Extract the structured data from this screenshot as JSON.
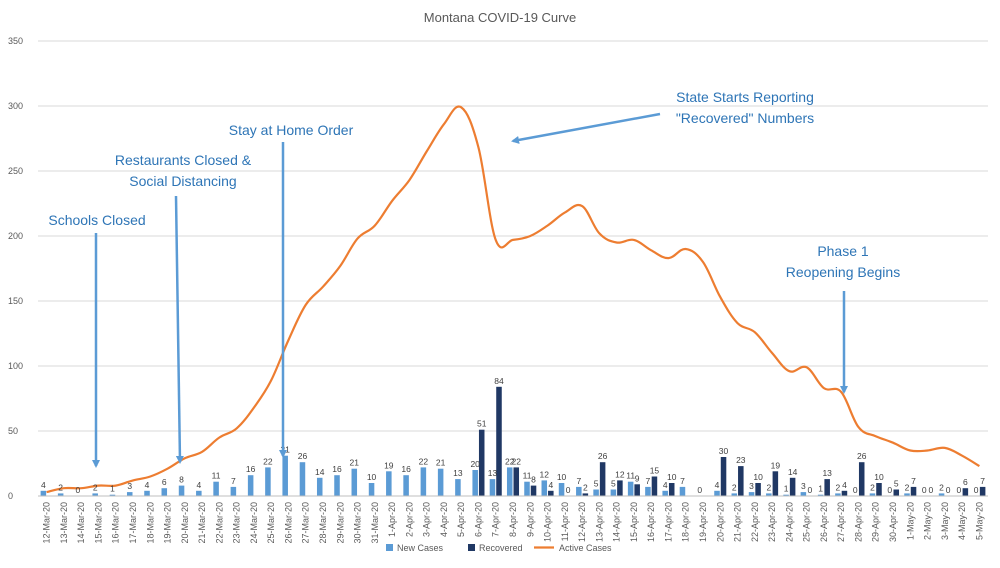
{
  "chart_data": {
    "type": "bar",
    "title": "Montana COVID-19 Curve",
    "ylim": [
      0,
      350
    ],
    "yticks": [
      0,
      50,
      100,
      150,
      200,
      250,
      300,
      350
    ],
    "grid": true,
    "legend_position": "bottom",
    "categories": [
      "12-Mar-20",
      "13-Mar-20",
      "14-Mar-20",
      "15-Mar-20",
      "16-Mar-20",
      "17-Mar-20",
      "18-Mar-20",
      "19-Mar-20",
      "20-Mar-20",
      "21-Mar-20",
      "22-Mar-20",
      "23-Mar-20",
      "24-Mar-20",
      "25-Mar-20",
      "26-Mar-20",
      "27-Mar-20",
      "28-Mar-20",
      "29-Mar-20",
      "30-Mar-20",
      "31-Mar-20",
      "1-Apr-20",
      "2-Apr-20",
      "3-Apr-20",
      "4-Apr-20",
      "5-Apr-20",
      "6-Apr-20",
      "7-Apr-20",
      "8-Apr-20",
      "9-Apr-20",
      "10-Apr-20",
      "11-Apr-20",
      "12-Apr-20",
      "13-Apr-20",
      "14-Apr-20",
      "15-Apr-20",
      "16-Apr-20",
      "17-Apr-20",
      "18-Apr-20",
      "19-Apr-20",
      "20-Apr-20",
      "21-Apr-20",
      "22-Apr-20",
      "23-Apr-20",
      "24-Apr-20",
      "25-Apr-20",
      "26-Apr-20",
      "27-Apr-20",
      "28-Apr-20",
      "29-Apr-20",
      "30-Apr-20",
      "1-May-20",
      "2-May-20",
      "3-May-20",
      "4-May-20",
      "5-May-20"
    ],
    "series": [
      {
        "name": "New Cases",
        "kind": "bar",
        "color": "#5b9bd5",
        "values": [
          4,
          2,
          0,
          2,
          1,
          3,
          4,
          6,
          8,
          4,
          11,
          7,
          16,
          22,
          31,
          26,
          14,
          16,
          21,
          10,
          19,
          16,
          22,
          21,
          13,
          20,
          13,
          22,
          11,
          12,
          10,
          7,
          5,
          5,
          11,
          7,
          4,
          7,
          0,
          4,
          2,
          3,
          2,
          1,
          3,
          1,
          2,
          0,
          2,
          0,
          2,
          0,
          2,
          0,
          0
        ],
        "labels": [
          "4",
          "2",
          "0",
          "2",
          "1",
          "3",
          "4",
          "6",
          "8",
          "4",
          "11",
          "7",
          "16",
          "22",
          "31",
          "26",
          "14",
          "16",
          "21",
          "10",
          "19",
          "16",
          "22",
          "21",
          "13",
          "20",
          "13",
          "22",
          "11",
          "12",
          "10",
          "7",
          "5",
          "5",
          "11",
          "7",
          "4",
          "7",
          "0",
          "4",
          "2",
          "3",
          "2",
          "1",
          "3",
          "1",
          "2",
          "0",
          "2",
          "0",
          "2",
          "0",
          "2",
          "0",
          "0"
        ]
      },
      {
        "name": "Recovered",
        "kind": "bar",
        "color": "#203864",
        "values": [
          0,
          0,
          0,
          0,
          0,
          0,
          0,
          0,
          0,
          0,
          0,
          0,
          0,
          0,
          0,
          0,
          0,
          0,
          0,
          0,
          0,
          0,
          0,
          0,
          0,
          51,
          84,
          22,
          8,
          4,
          0,
          2,
          26,
          12,
          9,
          15,
          10,
          0,
          0,
          30,
          23,
          10,
          19,
          14,
          0,
          13,
          4,
          26,
          10,
          5,
          7,
          0,
          0,
          6,
          7
        ],
        "labels": [
          "",
          "",
          "",
          "",
          "",
          "",
          "",
          "",
          "",
          "",
          "",
          "",
          "",
          "",
          "",
          "",
          "",
          "",
          "",
          "",
          "",
          "",
          "",
          "",
          "",
          "51",
          "84",
          "22",
          "8",
          "4",
          "0",
          "2",
          "26",
          "12",
          "9",
          "15",
          "10",
          "",
          "",
          "30",
          "23",
          "10",
          "19",
          "14",
          "0",
          "13",
          "4",
          "26",
          "10",
          "5",
          "7",
          "0",
          "0",
          "6",
          "7"
        ]
      },
      {
        "name": "Active Cases",
        "kind": "line",
        "color": "#ed7d31",
        "values": [
          3,
          6,
          6,
          8,
          8,
          12,
          15,
          21,
          29,
          34,
          45,
          52,
          68,
          89,
          120,
          147,
          161,
          177,
          198,
          208,
          227,
          243,
          265,
          286,
          299,
          268,
          197,
          197,
          200,
          208,
          218,
          223,
          202,
          195,
          197,
          189,
          183,
          190,
          180,
          153,
          133,
          126,
          110,
          96,
          99,
          83,
          80,
          53,
          46,
          41,
          35,
          35,
          37,
          31,
          23
        ]
      }
    ],
    "annotations": [
      {
        "lines": [
          "Schools Closed"
        ],
        "target": "15-Mar-20"
      },
      {
        "lines": [
          "Restaurants Closed &",
          "Social Distancing"
        ],
        "target": "20-Mar-20"
      },
      {
        "lines": [
          "Stay at Home Order"
        ],
        "target": "26-Mar-20"
      },
      {
        "lines": [
          "State Starts Reporting",
          "\"Recovered\"  Numbers"
        ],
        "target": "7-Apr-20"
      },
      {
        "lines": [
          "Phase 1",
          "Reopening Begins"
        ],
        "target": "27-Apr-20"
      }
    ]
  }
}
